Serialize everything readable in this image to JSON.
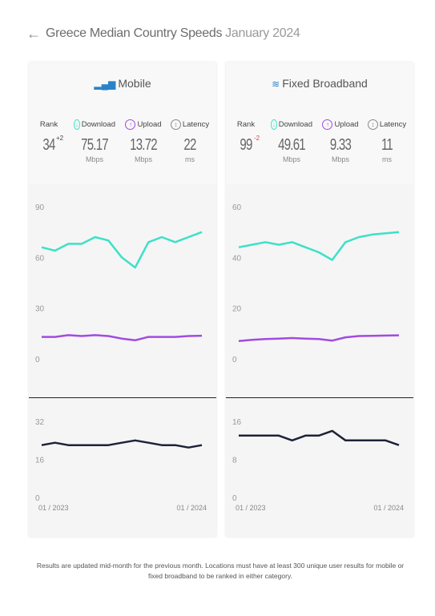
{
  "header": {
    "title": "Greece Median Country Speeds",
    "month": "January 2024"
  },
  "cards": [
    {
      "id": "mobile",
      "title": "Mobile",
      "icon": "signal-bars-icon",
      "rank_label": "Rank",
      "rank": "34",
      "rank_change": "+2",
      "rank_change_color": "#444444",
      "download_label": "Download",
      "download": "75.17",
      "download_unit": "Mbps",
      "upload_label": "Upload",
      "upload": "13.72",
      "upload_unit": "Mbps",
      "latency_label": "Latency",
      "latency": "22",
      "latency_unit": "ms"
    },
    {
      "id": "fixed",
      "title": "Fixed Broadband",
      "icon": "wifi-icon",
      "rank_label": "Rank",
      "rank": "99",
      "rank_change": "-2",
      "rank_change_color": "#e04545",
      "download_label": "Download",
      "download": "49.61",
      "download_unit": "Mbps",
      "upload_label": "Upload",
      "upload": "9.33",
      "upload_unit": "Mbps",
      "latency_label": "Latency",
      "latency": "11",
      "latency_unit": "ms"
    }
  ],
  "colors": {
    "download": "#3ee0c8",
    "upload": "#a14be0",
    "latency": "#1e2238",
    "icon": "#2a82c9"
  },
  "chart_data": [
    {
      "type": "line",
      "panel": "mobile-speed",
      "x_labels": [
        "01 / 2023",
        "01 / 2024"
      ],
      "y_ticks": [
        0,
        30,
        60,
        90
      ],
      "ylim": [
        0,
        90
      ],
      "series": [
        {
          "name": "Download",
          "values": [
            66,
            64,
            68,
            68,
            72,
            70,
            60,
            54,
            69,
            72,
            69,
            72,
            75
          ]
        },
        {
          "name": "Upload",
          "values": [
            13,
            13,
            14,
            13.5,
            14,
            13.5,
            12,
            11,
            13,
            13,
            13,
            13.5,
            13.7
          ]
        }
      ]
    },
    {
      "type": "line",
      "panel": "mobile-latency",
      "x_labels": [
        "01 / 2023",
        "01 / 2024"
      ],
      "y_ticks": [
        0,
        16,
        32
      ],
      "ylim": [
        0,
        32
      ],
      "series": [
        {
          "name": "Latency",
          "values": [
            22,
            23,
            22,
            22,
            22,
            22,
            23,
            24,
            23,
            22,
            22,
            21,
            22
          ]
        }
      ]
    },
    {
      "type": "line",
      "panel": "fixed-speed",
      "x_labels": [
        "01 / 2023",
        "01 / 2024"
      ],
      "y_ticks": [
        0,
        20,
        40,
        60
      ],
      "ylim": [
        0,
        60
      ],
      "series": [
        {
          "name": "Download",
          "values": [
            44,
            45,
            46,
            45,
            46,
            44,
            42,
            39,
            46,
            48,
            49,
            49.5,
            50
          ]
        },
        {
          "name": "Upload",
          "values": [
            7,
            7.5,
            7.8,
            8,
            8.2,
            8,
            7.8,
            7.2,
            8.5,
            9,
            9.1,
            9.2,
            9.3
          ]
        }
      ]
    },
    {
      "type": "line",
      "panel": "fixed-latency",
      "x_labels": [
        "01 / 2023",
        "01 / 2024"
      ],
      "y_ticks": [
        0,
        8,
        16
      ],
      "ylim": [
        0,
        16
      ],
      "series": [
        {
          "name": "Latency",
          "values": [
            13,
            13,
            13,
            13,
            12,
            13,
            13,
            14,
            12,
            12,
            12,
            12,
            11
          ]
        }
      ]
    }
  ],
  "footer": "Results are updated mid-month for the previous month. Locations must have at least 300 unique user results for mobile or fixed broadband to be ranked in either category."
}
